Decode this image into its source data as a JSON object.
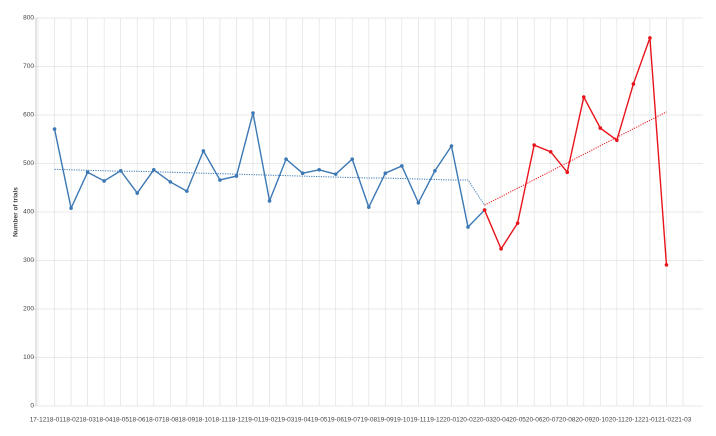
{
  "chart_data": {
    "type": "line",
    "y_label": "Number of trials",
    "categories": [
      "17-12",
      "18-01",
      "18-02",
      "18-03",
      "18-04",
      "18-05",
      "18-06",
      "18-07",
      "18-08",
      "18-09",
      "18-10",
      "18-11",
      "18-12",
      "19-01",
      "19-02",
      "19-03",
      "19-04",
      "19-05",
      "19-06",
      "19-07",
      "19-08",
      "19-09",
      "19-10",
      "19-11",
      "19-12",
      "20-01",
      "20-02",
      "20-03",
      "20-04",
      "20-05",
      "20-06",
      "20-07",
      "20-08",
      "20-09",
      "20-10",
      "20-11",
      "20-12",
      "21-01",
      "21-02",
      "21-03"
    ],
    "series": [
      {
        "color": "#3c78b4",
        "values": [
          null,
          571,
          408,
          482,
          464,
          485,
          439,
          487,
          462,
          443,
          526,
          466,
          474,
          604,
          423,
          509,
          480,
          487,
          478,
          509,
          410,
          480,
          495,
          419,
          485,
          536,
          369,
          404,
          null,
          null,
          null,
          null,
          null,
          null,
          null,
          null,
          null,
          null,
          null,
          null
        ]
      },
      {
        "color": "#e8141c",
        "values": [
          null,
          null,
          null,
          null,
          null,
          null,
          null,
          null,
          null,
          null,
          null,
          null,
          null,
          null,
          null,
          null,
          null,
          null,
          null,
          null,
          null,
          null,
          null,
          null,
          null,
          null,
          null,
          404,
          324,
          377,
          538,
          524,
          482,
          637,
          573,
          548,
          664,
          759,
          291,
          null
        ]
      }
    ],
    "trendlines": [
      {
        "color": "#3c78b4",
        "values": [
          null,
          488,
          487,
          486,
          485,
          484,
          484,
          483,
          482,
          481,
          480,
          479,
          478,
          477,
          476,
          475,
          474,
          473,
          472,
          471,
          470,
          470,
          469,
          468,
          467,
          466,
          466,
          414,
          null,
          null,
          null,
          null,
          null,
          null,
          null,
          null,
          null,
          null,
          null,
          null
        ]
      },
      {
        "color": "#e8141c",
        "values": [
          null,
          null,
          null,
          null,
          null,
          null,
          null,
          null,
          null,
          null,
          null,
          null,
          null,
          null,
          null,
          null,
          null,
          null,
          null,
          null,
          null,
          null,
          null,
          null,
          null,
          null,
          null,
          414,
          431.5,
          449,
          466.5,
          484,
          501.5,
          519,
          536.5,
          554,
          571.5,
          589,
          606.5,
          null
        ]
      }
    ],
    "ylim": [
      0,
      800
    ],
    "yticks": [
      0,
      100,
      200,
      300,
      400,
      500,
      600,
      700,
      800
    ],
    "grid": true
  }
}
